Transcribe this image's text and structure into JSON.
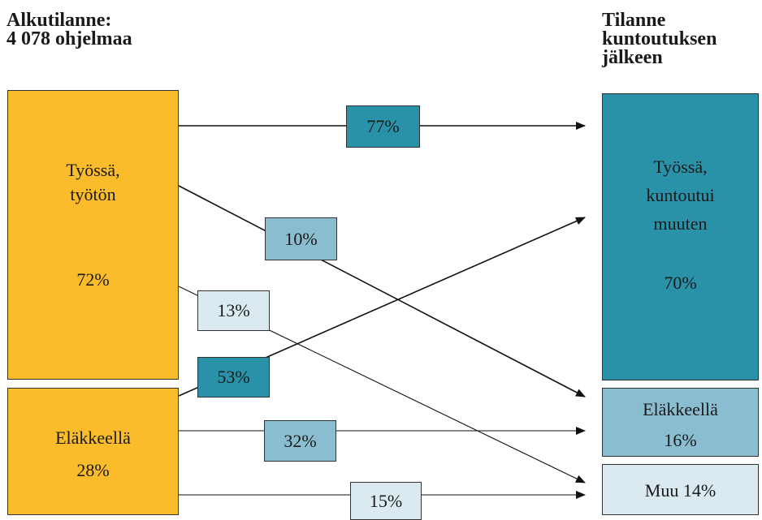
{
  "left_heading": "Alkutilanne:\n4 078 ohjelmaa",
  "right_heading": "Tilanne\nkuntoutuksen\njälkeen",
  "left_boxes": {
    "working": {
      "label": "Työssä,\ntyötön",
      "percent": "72%"
    },
    "retired": {
      "label": "Eläkkeellä",
      "percent": "28%"
    }
  },
  "right_boxes": {
    "working": {
      "label": "Työssä,\nkuntoutui\nmuuten",
      "percent": "70%"
    },
    "retired": {
      "label": "Eläkkeellä",
      "percent": "16%"
    },
    "other": {
      "label": "Muu 14%"
    }
  },
  "flows": [
    {
      "from": "Työssä, työtön",
      "to": "Työssä, kuntoutui muuten",
      "label": "77%"
    },
    {
      "from": "Työssä, työtön",
      "to": "Eläkkeellä",
      "label": "10%"
    },
    {
      "from": "Työssä, työtön",
      "to": "Muu",
      "label": "13%"
    },
    {
      "from": "Eläkkeellä",
      "to": "Työssä, kuntoutui muuten",
      "label": "53%"
    },
    {
      "from": "Eläkkeellä",
      "to": "Eläkkeellä",
      "label": "32%"
    },
    {
      "from": "Eläkkeellä",
      "to": "Muu",
      "label": "15%"
    }
  ],
  "colors": {
    "orange": "#fbbc2b",
    "teal": "#2a92a8",
    "mid_blue": "#8bbdd1",
    "light_blue": "#daeaf0"
  }
}
